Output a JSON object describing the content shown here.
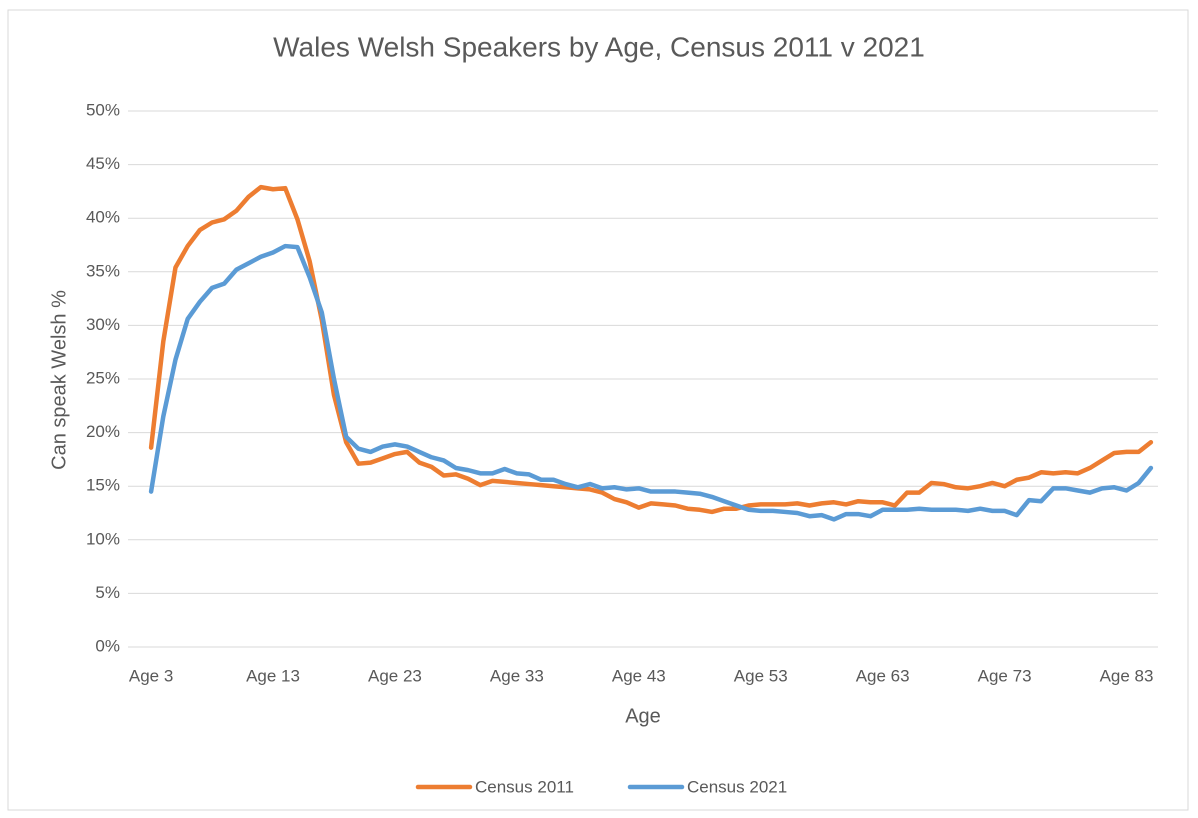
{
  "chart_data": {
    "type": "line",
    "title": "Wales Welsh Speakers by Age, Census 2011 v 2021",
    "x_label": "Age",
    "y_label": "Can speak Welsh %",
    "categories": [
      "Age 3",
      null,
      null,
      null,
      null,
      null,
      null,
      null,
      null,
      null,
      "Age 13",
      null,
      null,
      null,
      null,
      null,
      null,
      null,
      null,
      null,
      "Age 23",
      null,
      null,
      null,
      null,
      null,
      null,
      null,
      null,
      null,
      "Age 33",
      null,
      null,
      null,
      null,
      null,
      null,
      null,
      null,
      null,
      "Age 43",
      null,
      null,
      null,
      null,
      null,
      null,
      null,
      null,
      null,
      "Age 53",
      null,
      null,
      null,
      null,
      null,
      null,
      null,
      null,
      null,
      "Age 63",
      null,
      null,
      null,
      null,
      null,
      null,
      null,
      null,
      null,
      "Age 73",
      null,
      null,
      null,
      null,
      null,
      null,
      null,
      null,
      null,
      "Age 83",
      null,
      null
    ],
    "series": [
      {
        "name": "Census 2011",
        "color": "#ed7d31",
        "values": [
          18.6,
          28.5,
          35.4,
          37.4,
          38.9,
          39.6,
          39.9,
          40.7,
          42.0,
          42.9,
          42.7,
          42.8,
          39.9,
          36.0,
          30.5,
          23.5,
          19.1,
          17.1,
          17.2,
          17.6,
          18.0,
          18.2,
          17.2,
          16.8,
          16.0,
          16.1,
          15.7,
          15.1,
          15.5,
          15.4,
          15.3,
          15.2,
          15.1,
          15.0,
          14.9,
          14.8,
          14.7,
          14.4,
          13.8,
          13.5,
          13.0,
          13.4,
          13.3,
          13.2,
          12.9,
          12.8,
          12.6,
          12.9,
          12.9,
          13.2,
          13.3,
          13.3,
          13.3,
          13.4,
          13.2,
          13.4,
          13.5,
          13.3,
          13.6,
          13.5,
          13.5,
          13.2,
          14.4,
          14.4,
          15.3,
          15.2,
          14.9,
          14.8,
          15.0,
          15.3,
          15.0,
          15.6,
          15.8,
          16.3,
          16.2,
          16.3,
          16.2,
          16.7,
          17.4,
          18.1,
          18.2,
          18.2,
          19.1
        ]
      },
      {
        "name": "Census 2021",
        "color": "#5b9bd5",
        "values": [
          14.5,
          21.5,
          26.8,
          30.6,
          32.2,
          33.5,
          33.9,
          35.2,
          35.8,
          36.4,
          36.8,
          37.4,
          37.3,
          34.5,
          31.2,
          25.0,
          19.6,
          18.5,
          18.2,
          18.7,
          18.9,
          18.7,
          18.2,
          17.7,
          17.4,
          16.7,
          16.5,
          16.2,
          16.2,
          16.6,
          16.2,
          16.1,
          15.6,
          15.6,
          15.2,
          14.9,
          15.2,
          14.8,
          14.9,
          14.7,
          14.8,
          14.5,
          14.5,
          14.5,
          14.4,
          14.3,
          14.0,
          13.6,
          13.2,
          12.8,
          12.7,
          12.7,
          12.6,
          12.5,
          12.2,
          12.3,
          11.9,
          12.4,
          12.4,
          12.2,
          12.8,
          12.8,
          12.8,
          12.9,
          12.8,
          12.8,
          12.8,
          12.7,
          12.9,
          12.7,
          12.7,
          12.3,
          13.7,
          13.6,
          14.8,
          14.8,
          14.6,
          14.4,
          14.8,
          14.9,
          14.6,
          15.3,
          16.7
        ]
      }
    ],
    "ylim": [
      0,
      50
    ],
    "yticks": [
      {
        "value": 0,
        "label": "0%"
      },
      {
        "value": 5,
        "label": "5%"
      },
      {
        "value": 10,
        "label": "10%"
      },
      {
        "value": 15,
        "label": "15%"
      },
      {
        "value": 20,
        "label": "20%"
      },
      {
        "value": 25,
        "label": "25%"
      },
      {
        "value": 30,
        "label": "30%"
      },
      {
        "value": 35,
        "label": "35%"
      },
      {
        "value": 40,
        "label": "40%"
      },
      {
        "value": 45,
        "label": "45%"
      },
      {
        "value": 50,
        "label": "50%"
      }
    ],
    "grid": true,
    "legend": "bottom"
  }
}
